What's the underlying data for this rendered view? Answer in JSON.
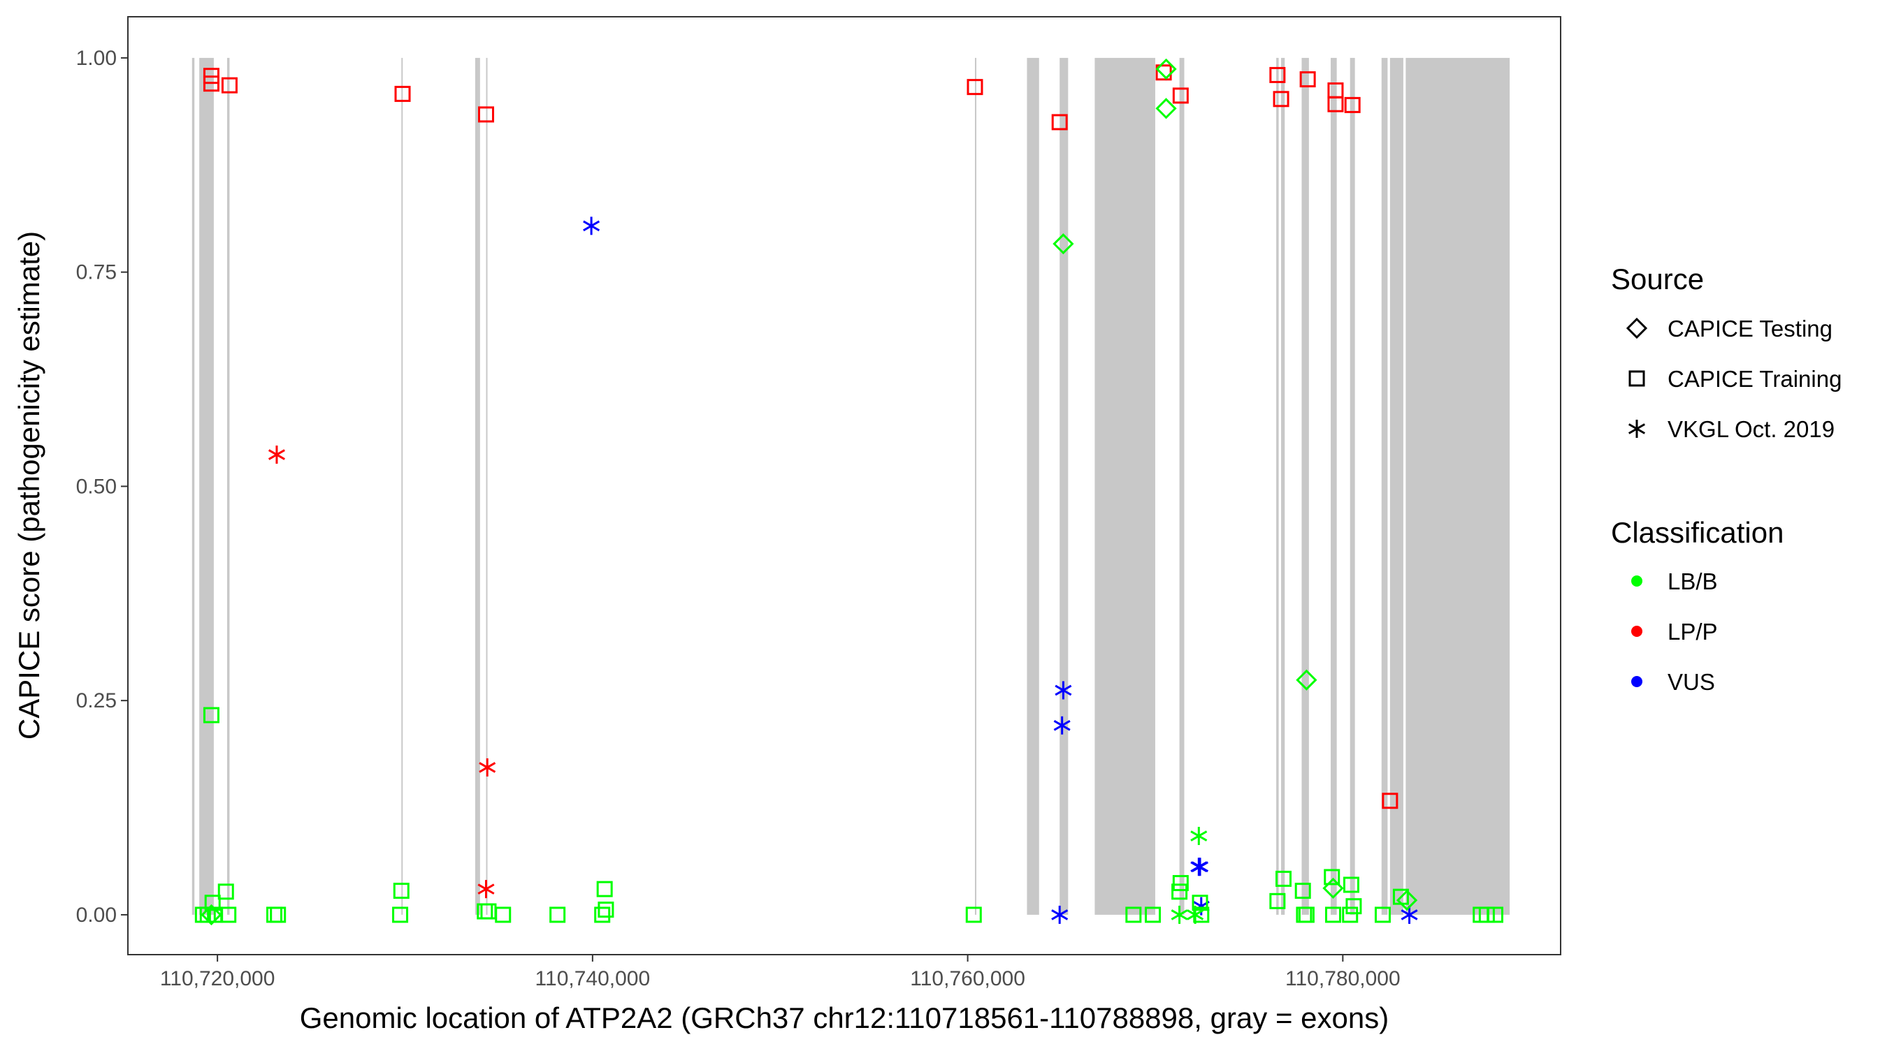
{
  "chart_data": {
    "type": "scatter",
    "title": "",
    "xlabel": "Genomic location of ATP2A2 (GRCh37 chr12:110718561-110788898, gray = exons)",
    "ylabel": "CAPICE score (pathogenicity estimate)",
    "xlim": [
      110715226,
      110791613
    ],
    "ylim": [
      -0.0465,
      1.048
    ],
    "x_ticks": [
      110720000,
      110740000,
      110760000,
      110780000
    ],
    "x_tick_labels": [
      "110,720,000",
      "110,740,000",
      "110,760,000",
      "110,780,000"
    ],
    "y_ticks": [
      0,
      0.25,
      0.5,
      0.75,
      1.0
    ],
    "y_tick_labels": [
      "0.00",
      "0.25",
      "0.50",
      "0.75",
      "1.00"
    ],
    "grid": false,
    "legend_placement": "right",
    "exon_color": "#c8c8c8",
    "exons": [
      [
        110718645,
        110718774
      ],
      [
        110719032,
        110719806
      ],
      [
        110720516,
        110720645
      ],
      [
        110729806,
        110729871
      ],
      [
        110733742,
        110734000
      ],
      [
        110734323,
        110734387
      ],
      [
        110760387,
        110760452
      ],
      [
        110763161,
        110763806
      ],
      [
        110764903,
        110765355
      ],
      [
        110766774,
        110770000
      ],
      [
        110771290,
        110771548
      ],
      [
        110776452,
        110776581
      ],
      [
        110776710,
        110776903
      ],
      [
        110777806,
        110778194
      ],
      [
        110779355,
        110779677
      ],
      [
        110780387,
        110780645
      ],
      [
        110782065,
        110782387
      ],
      [
        110782516,
        110783226
      ],
      [
        110783355,
        110788898
      ]
    ],
    "legend": {
      "source_title": "Source",
      "sources": [
        {
          "label": "CAPICE Testing",
          "shape": "diamond"
        },
        {
          "label": "CAPICE Training",
          "shape": "square"
        },
        {
          "label": "VKGL Oct. 2019",
          "shape": "asterisk"
        }
      ],
      "class_title": "Classification",
      "classes": [
        {
          "label": "LB/B",
          "color": "#00ff00"
        },
        {
          "label": "LP/P",
          "color": "#ff0000"
        },
        {
          "label": "VUS",
          "color": "#0000ff"
        }
      ]
    },
    "points": [
      {
        "x": 110719677,
        "y": 0.979,
        "source": "CAPICE Training",
        "class": "LP/P"
      },
      {
        "x": 110719677,
        "y": 0.97,
        "source": "CAPICE Training",
        "class": "LP/P"
      },
      {
        "x": 110720645,
        "y": 0.968,
        "source": "CAPICE Training",
        "class": "LP/P"
      },
      {
        "x": 110729871,
        "y": 0.958,
        "source": "CAPICE Training",
        "class": "LP/P"
      },
      {
        "x": 110734323,
        "y": 0.934,
        "source": "CAPICE Training",
        "class": "LP/P"
      },
      {
        "x": 110760387,
        "y": 0.966,
        "source": "CAPICE Training",
        "class": "LP/P"
      },
      {
        "x": 110764903,
        "y": 0.925,
        "source": "CAPICE Training",
        "class": "LP/P"
      },
      {
        "x": 110770452,
        "y": 0.983,
        "source": "CAPICE Training",
        "class": "LP/P"
      },
      {
        "x": 110771355,
        "y": 0.956,
        "source": "CAPICE Training",
        "class": "LP/P"
      },
      {
        "x": 110776516,
        "y": 0.98,
        "source": "CAPICE Training",
        "class": "LP/P"
      },
      {
        "x": 110776710,
        "y": 0.952,
        "source": "CAPICE Training",
        "class": "LP/P"
      },
      {
        "x": 110778129,
        "y": 0.975,
        "source": "CAPICE Training",
        "class": "LP/P"
      },
      {
        "x": 110779613,
        "y": 0.962,
        "source": "CAPICE Training",
        "class": "LP/P"
      },
      {
        "x": 110779613,
        "y": 0.946,
        "source": "CAPICE Training",
        "class": "LP/P"
      },
      {
        "x": 110780516,
        "y": 0.945,
        "source": "CAPICE Training",
        "class": "LP/P"
      },
      {
        "x": 110782516,
        "y": 0.133,
        "source": "CAPICE Training",
        "class": "LP/P"
      },
      {
        "x": 110723161,
        "y": 0.537,
        "source": "VKGL Oct. 2019",
        "class": "LP/P"
      },
      {
        "x": 110734387,
        "y": 0.172,
        "source": "VKGL Oct. 2019",
        "class": "LP/P"
      },
      {
        "x": 110734323,
        "y": 0.03,
        "source": "VKGL Oct. 2019",
        "class": "LP/P"
      },
      {
        "x": 110739935,
        "y": 0.804,
        "source": "VKGL Oct. 2019",
        "class": "VUS"
      },
      {
        "x": 110765097,
        "y": 0.262,
        "source": "VKGL Oct. 2019",
        "class": "VUS"
      },
      {
        "x": 110765032,
        "y": 0.221,
        "source": "VKGL Oct. 2019",
        "class": "VUS"
      },
      {
        "x": 110764903,
        "y": 0.0,
        "source": "VKGL Oct. 2019",
        "class": "VUS"
      },
      {
        "x": 110772387,
        "y": 0.056,
        "source": "VKGL Oct. 2019",
        "class": "VUS"
      },
      {
        "x": 110772323,
        "y": 0.056,
        "source": "VKGL Oct. 2019",
        "class": "VUS"
      },
      {
        "x": 110772452,
        "y": 0.01,
        "source": "VKGL Oct. 2019",
        "class": "VUS"
      },
      {
        "x": 110783548,
        "y": 0.0,
        "source": "VKGL Oct. 2019",
        "class": "VUS"
      },
      {
        "x": 110770581,
        "y": 0.987,
        "source": "CAPICE Testing",
        "class": "LB/B"
      },
      {
        "x": 110770581,
        "y": 0.941,
        "source": "CAPICE Testing",
        "class": "LB/B"
      },
      {
        "x": 110765097,
        "y": 0.783,
        "source": "CAPICE Testing",
        "class": "LB/B"
      },
      {
        "x": 110778065,
        "y": 0.274,
        "source": "CAPICE Testing",
        "class": "LB/B"
      },
      {
        "x": 110779484,
        "y": 0.031,
        "source": "CAPICE Testing",
        "class": "LB/B"
      },
      {
        "x": 110783419,
        "y": 0.017,
        "source": "CAPICE Testing",
        "class": "LB/B"
      },
      {
        "x": 110719677,
        "y": 0.0,
        "source": "CAPICE Testing",
        "class": "LB/B"
      },
      {
        "x": 110772323,
        "y": 0.092,
        "source": "VKGL Oct. 2019",
        "class": "LB/B"
      },
      {
        "x": 110771290,
        "y": 0.0,
        "source": "VKGL Oct. 2019",
        "class": "LB/B"
      },
      {
        "x": 110772129,
        "y": 0.0,
        "source": "VKGL Oct. 2019",
        "class": "LB/B"
      },
      {
        "x": 110719677,
        "y": 0.233,
        "source": "CAPICE Training",
        "class": "LB/B"
      },
      {
        "x": 110720452,
        "y": 0.027,
        "source": "CAPICE Training",
        "class": "LB/B"
      },
      {
        "x": 110719742,
        "y": 0.014,
        "source": "CAPICE Training",
        "class": "LB/B"
      },
      {
        "x": 110719226,
        "y": 0.0,
        "source": "CAPICE Training",
        "class": "LB/B"
      },
      {
        "x": 110719484,
        "y": 0.0,
        "source": "CAPICE Training",
        "class": "LB/B"
      },
      {
        "x": 110719871,
        "y": 0.0,
        "source": "CAPICE Training",
        "class": "LB/B"
      },
      {
        "x": 110720581,
        "y": 0.0,
        "source": "CAPICE Training",
        "class": "LB/B"
      },
      {
        "x": 110723032,
        "y": 0.0,
        "source": "CAPICE Training",
        "class": "LB/B"
      },
      {
        "x": 110723226,
        "y": 0.0,
        "source": "CAPICE Training",
        "class": "LB/B"
      },
      {
        "x": 110729806,
        "y": 0.028,
        "source": "CAPICE Training",
        "class": "LB/B"
      },
      {
        "x": 110729742,
        "y": 0.0,
        "source": "CAPICE Training",
        "class": "LB/B"
      },
      {
        "x": 110734258,
        "y": 0.004,
        "source": "CAPICE Training",
        "class": "LB/B"
      },
      {
        "x": 110734452,
        "y": 0.004,
        "source": "CAPICE Training",
        "class": "LB/B"
      },
      {
        "x": 110735226,
        "y": 0.0,
        "source": "CAPICE Training",
        "class": "LB/B"
      },
      {
        "x": 110738129,
        "y": 0.0,
        "source": "CAPICE Training",
        "class": "LB/B"
      },
      {
        "x": 110740645,
        "y": 0.03,
        "source": "CAPICE Training",
        "class": "LB/B"
      },
      {
        "x": 110740710,
        "y": 0.006,
        "source": "CAPICE Training",
        "class": "LB/B"
      },
      {
        "x": 110740516,
        "y": 0.0,
        "source": "CAPICE Training",
        "class": "LB/B"
      },
      {
        "x": 110760323,
        "y": 0.0,
        "source": "CAPICE Training",
        "class": "LB/B"
      },
      {
        "x": 110768839,
        "y": 0.0,
        "source": "CAPICE Training",
        "class": "LB/B"
      },
      {
        "x": 110769871,
        "y": 0.0,
        "source": "CAPICE Training",
        "class": "LB/B"
      },
      {
        "x": 110771355,
        "y": 0.037,
        "source": "CAPICE Training",
        "class": "LB/B"
      },
      {
        "x": 110771290,
        "y": 0.027,
        "source": "CAPICE Training",
        "class": "LB/B"
      },
      {
        "x": 110772387,
        "y": 0.014,
        "source": "CAPICE Training",
        "class": "LB/B"
      },
      {
        "x": 110772452,
        "y": 0.0,
        "source": "CAPICE Training",
        "class": "LB/B"
      },
      {
        "x": 110776516,
        "y": 0.016,
        "source": "CAPICE Training",
        "class": "LB/B"
      },
      {
        "x": 110776839,
        "y": 0.042,
        "source": "CAPICE Training",
        "class": "LB/B"
      },
      {
        "x": 110777871,
        "y": 0.028,
        "source": "CAPICE Training",
        "class": "LB/B"
      },
      {
        "x": 110777935,
        "y": 0.0,
        "source": "CAPICE Training",
        "class": "LB/B"
      },
      {
        "x": 110778065,
        "y": 0.0,
        "source": "CAPICE Training",
        "class": "LB/B"
      },
      {
        "x": 110779419,
        "y": 0.044,
        "source": "CAPICE Training",
        "class": "LB/B"
      },
      {
        "x": 110779484,
        "y": 0.0,
        "source": "CAPICE Training",
        "class": "LB/B"
      },
      {
        "x": 110780452,
        "y": 0.035,
        "source": "CAPICE Training",
        "class": "LB/B"
      },
      {
        "x": 110780581,
        "y": 0.01,
        "source": "CAPICE Training",
        "class": "LB/B"
      },
      {
        "x": 110780387,
        "y": 0.0,
        "source": "CAPICE Training",
        "class": "LB/B"
      },
      {
        "x": 110782129,
        "y": 0.0,
        "source": "CAPICE Training",
        "class": "LB/B"
      },
      {
        "x": 110783097,
        "y": 0.021,
        "source": "CAPICE Training",
        "class": "LB/B"
      },
      {
        "x": 110787355,
        "y": 0.0,
        "source": "CAPICE Training",
        "class": "LB/B"
      },
      {
        "x": 110787677,
        "y": 0.0,
        "source": "CAPICE Training",
        "class": "LB/B"
      },
      {
        "x": 110788129,
        "y": 0.0,
        "source": "CAPICE Training",
        "class": "LB/B"
      }
    ]
  }
}
